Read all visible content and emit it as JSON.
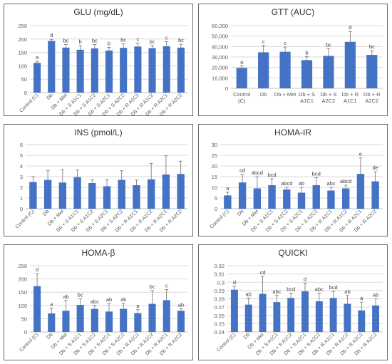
{
  "chart_data": [
    {
      "type": "bar",
      "title": "GLU (mg/dL)",
      "ylim": [
        0,
        250
      ],
      "yticks": [
        0,
        50,
        100,
        150,
        200,
        250
      ],
      "grid": true,
      "color": "#4472c4",
      "categories": [
        "Control (C)",
        "Db",
        "Db + Met",
        "Db + S A1C1",
        "Db + S A1C2",
        "Db + S A2C1",
        "Db + S A2C2",
        "Db + R A1C1",
        "Db + R A1C2",
        "Db + R A2C1",
        "Db + R A2C2"
      ],
      "values": [
        111,
        193,
        168,
        160,
        165,
        157,
        167,
        172,
        166,
        173,
        168
      ],
      "errors": [
        6,
        6,
        12,
        15,
        15,
        12,
        15,
        13,
        10,
        17,
        13
      ],
      "labels": [
        "a",
        "d",
        "bc",
        "b",
        "bc",
        "b",
        "bc",
        "c",
        "bc",
        "c",
        "bc"
      ]
    },
    {
      "type": "bar",
      "title": "GTT (AUC)",
      "ylim": [
        0,
        60000
      ],
      "yticks": [
        0,
        10000,
        20000,
        30000,
        40000,
        50000,
        60000
      ],
      "ytick_labels": [
        "0",
        "10,000",
        "20,000",
        "30,000",
        "40,000",
        "50,000",
        "60,000"
      ],
      "grid": true,
      "color": "#4472c4",
      "categories": [
        [
          "Control",
          "(C)"
        ],
        [
          "Db"
        ],
        [
          "Db + Met"
        ],
        [
          "Db + S",
          "A1C1"
        ],
        [
          "Db + S",
          "A2C2"
        ],
        [
          "Db + R",
          "A1C1"
        ],
        [
          "Db + R",
          "A2C2"
        ]
      ],
      "values": [
        19500,
        34500,
        35000,
        27000,
        31000,
        44500,
        32000
      ],
      "errors": [
        2000,
        6500,
        4500,
        3500,
        7000,
        10000,
        4000
      ],
      "labels": [
        "a",
        "c",
        "c",
        "b",
        "bc",
        "d",
        "bc"
      ]
    },
    {
      "type": "bar",
      "title": "INS (pmol/L)",
      "ylim": [
        0,
        6
      ],
      "yticks": [
        0,
        1,
        2,
        3,
        4,
        5,
        6
      ],
      "grid": true,
      "color": "#4472c4",
      "categories": [
        "Control (C)",
        "Db",
        "Db + Met",
        "Db + S A1C1",
        "Db + S A1C2",
        "Db + S A2C1",
        "Db + S A2C2",
        "Db + R A1C1",
        "Db + R A1C2",
        "Db + R A2C1",
        "Db + R A2C2"
      ],
      "values": [
        2.5,
        2.7,
        2.45,
        2.95,
        2.4,
        2.1,
        2.7,
        2.2,
        2.75,
        3.2,
        3.25
      ],
      "errors": [
        0.5,
        0.85,
        1.2,
        0.7,
        0.3,
        0.6,
        0.85,
        0.5,
        1.5,
        1.75,
        1.2
      ],
      "labels": []
    },
    {
      "type": "bar",
      "title": "HOMA-IR",
      "ylim": [
        0,
        30
      ],
      "yticks": [
        0,
        5,
        10,
        15,
        20,
        25,
        30
      ],
      "grid": true,
      "color": "#4472c4",
      "categories": [
        "Control (C)",
        "Db",
        "Db + Met",
        "Db + S A1C1",
        "Db + S A1C2",
        "Db + S A2C1",
        "Db + S A2C2",
        "Db + R A1C1",
        "Db + R A1C2",
        "Db + R A2C1",
        "Db + R A2C2"
      ],
      "values": [
        6.2,
        12.3,
        9.5,
        11,
        9,
        7.5,
        11,
        8.5,
        9.5,
        16.3,
        12.8
      ],
      "errors": [
        1.5,
        3.8,
        5.5,
        3,
        1,
        2.5,
        3.5,
        1.5,
        1.5,
        7.5,
        4.5
      ],
      "labels": [
        "a",
        "cd",
        "abcd",
        "bcd",
        "abcd",
        "ab",
        "bcd",
        "abc",
        "abcd",
        "e",
        "de"
      ]
    },
    {
      "type": "bar",
      "title": "HOMA-β",
      "ylim": [
        0,
        250
      ],
      "yticks": [
        0,
        50,
        100,
        150,
        200,
        250
      ],
      "grid": true,
      "color": "#4472c4",
      "categories": [
        "Control (C)",
        "Db",
        "Db + Met",
        "Db + S A1C1",
        "Db + S A1C2",
        "Db + S A2C1",
        "Db + S A2C2",
        "Db + R A1C1",
        "Db + R A1C2",
        "Db + R A2C1",
        "Db + R A2C2"
      ],
      "values": [
        173,
        70,
        80,
        102,
        87,
        77,
        87,
        71,
        106,
        120,
        80
      ],
      "errors": [
        47,
        20,
        38,
        23,
        13,
        30,
        20,
        13,
        50,
        40,
        8
      ],
      "labels": [
        "d",
        "a",
        "ab",
        "bc",
        "abc",
        "ab",
        "ab",
        "a",
        "bc",
        "c",
        "ab"
      ]
    },
    {
      "type": "bar",
      "title": "QUICKI",
      "ylim": [
        0.24,
        0.32
      ],
      "yticks": [
        0.24,
        0.25,
        0.26,
        0.27,
        0.28,
        0.29,
        0.3,
        0.31,
        0.32
      ],
      "ytick_labels": [
        "0.24",
        "0.25",
        "0.26",
        "0.27",
        "0.28",
        "0.29",
        "0.3",
        "0.31",
        "0.32"
      ],
      "grid": true,
      "color": "#4472c4",
      "categories": [
        "Control (C)",
        "Db",
        "Db + Met",
        "Db + S A1C1",
        "Db + S A1C2",
        "Db + S A2C1",
        "Db + S A2C2",
        "Db + R A1C1",
        "Db + R A1C2",
        "Db + R A2C1",
        "Db + R A2C2"
      ],
      "values": [
        0.291,
        0.273,
        0.286,
        0.276,
        0.281,
        0.289,
        0.277,
        0.281,
        0.274,
        0.266,
        0.272
      ],
      "errors": [
        0.004,
        0.008,
        0.021,
        0.008,
        0.006,
        0.01,
        0.01,
        0.008,
        0.01,
        0.01,
        0.008
      ],
      "labels": [
        "d",
        "ab",
        "cd",
        "abc",
        "bcd",
        "d",
        "abc",
        "bcd",
        "ab",
        "a",
        "ab"
      ]
    }
  ]
}
